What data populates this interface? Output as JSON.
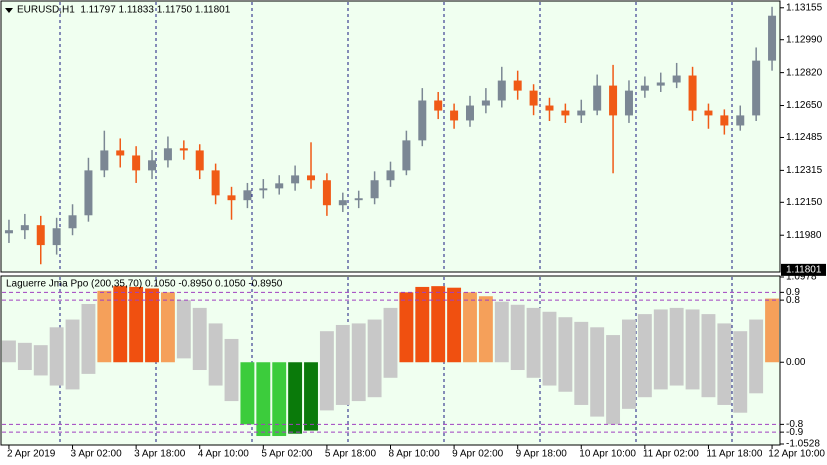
{
  "chart_data": [
    {
      "type": "candlestick",
      "title": "EURUSD,H1  1.11797 1.11833 1.11750 1.11801",
      "categories": [
        "2 Apr 2019",
        null,
        null,
        null,
        "3 Apr 02:00",
        null,
        null,
        null,
        "3 Apr 18:00",
        null,
        null,
        null,
        "4 Apr 10:00",
        null,
        null,
        null,
        "5 Apr 02:00",
        null,
        null,
        null,
        "5 Apr 18:00",
        null,
        null,
        null,
        "8 Apr 10:00",
        null,
        null,
        null,
        "9 Apr 02:00",
        null,
        null,
        null,
        "9 Apr 18:00",
        null,
        null,
        null,
        "10 Apr 10:00",
        null,
        null,
        null,
        "11 Apr 02:00",
        null,
        null,
        null,
        "11 Apr 18:00",
        null,
        null,
        null,
        "12 Apr 10:00"
      ],
      "open": [
        1.1199,
        1.12006,
        1.12032,
        1.11929,
        1.12016,
        1.12083,
        1.12315,
        1.12418,
        1.12392,
        1.12315,
        1.12367,
        1.12429,
        1.12418,
        1.12315,
        1.12186,
        1.12161,
        1.12212,
        1.12222,
        1.12248,
        1.12289,
        1.12264,
        1.12135,
        1.12161,
        1.12171,
        1.12264,
        1.12315,
        1.1247,
        1.12676,
        1.12624,
        1.12573,
        1.1265,
        1.12676,
        1.12779,
        1.12727,
        1.1265,
        1.12624,
        1.12599,
        1.12624,
        1.12753,
        1.12599,
        1.12727,
        1.12753,
        1.12769,
        1.12805,
        1.12624,
        1.12599,
        1.12547,
        1.12599,
        1.12882
      ],
      "high": [
        1.1206,
        1.1209,
        1.1208,
        1.1207,
        1.1214,
        1.1238,
        1.1252,
        1.1248,
        1.1244,
        1.1242,
        1.1249,
        1.1247,
        1.1245,
        1.1235,
        1.1223,
        1.1225,
        1.1227,
        1.1229,
        1.1234,
        1.1246,
        1.123,
        1.122,
        1.1221,
        1.1231,
        1.1236,
        1.1252,
        1.1274,
        1.1272,
        1.1266,
        1.127,
        1.1274,
        1.1285,
        1.1283,
        1.1276,
        1.1269,
        1.1266,
        1.1268,
        1.1281,
        1.1286,
        1.1278,
        1.128,
        1.1282,
        1.1287,
        1.1285,
        1.1266,
        1.1263,
        1.1265,
        1.1295,
        1.1316
      ],
      "low": [
        1.1194,
        1.1196,
        1.1183,
        1.1188,
        1.1198,
        1.1205,
        1.1228,
        1.1233,
        1.1225,
        1.1227,
        1.1233,
        1.1237,
        1.1227,
        1.1214,
        1.1206,
        1.1212,
        1.1217,
        1.1219,
        1.1221,
        1.1222,
        1.1208,
        1.121,
        1.1212,
        1.1214,
        1.1223,
        1.1229,
        1.1244,
        1.1258,
        1.1253,
        1.1254,
        1.1261,
        1.1264,
        1.1268,
        1.126,
        1.1257,
        1.1256,
        1.1256,
        1.126,
        1.123,
        1.1256,
        1.1269,
        1.1272,
        1.1274,
        1.1257,
        1.1253,
        1.125,
        1.1252,
        1.1257,
        1.1283
      ],
      "close": [
        1.12006,
        1.12032,
        1.11929,
        1.12016,
        1.12083,
        1.12315,
        1.12418,
        1.12392,
        1.12315,
        1.12367,
        1.12429,
        1.12418,
        1.12315,
        1.12186,
        1.12161,
        1.12212,
        1.12222,
        1.12248,
        1.12289,
        1.12264,
        1.12135,
        1.12161,
        1.12171,
        1.12264,
        1.12315,
        1.1247,
        1.12676,
        1.12624,
        1.12573,
        1.1265,
        1.12676,
        1.12779,
        1.12727,
        1.1265,
        1.12624,
        1.12599,
        1.12624,
        1.12753,
        1.12599,
        1.12727,
        1.12753,
        1.12769,
        1.12805,
        1.12624,
        1.12599,
        1.12547,
        1.12599,
        1.12882,
        1.13114
      ],
      "up_color": "#7b8794",
      "down_color": "#f05a16",
      "last_price": {
        "value": 1.11801,
        "label": "1.11801"
      },
      "ylim": [
        1.1179,
        1.1319
      ],
      "yticks": [
        1.13155,
        {
          "value": 1.1299,
          "label": "1.12990"
        },
        {
          "value": 1.1282,
          "label": "1.12820"
        },
        {
          "value": 1.1265,
          "label": "1.12650"
        },
        1.12485,
        1.12315,
        {
          "value": 1.1215,
          "label": "1.12150"
        },
        {
          "value": 1.1198,
          "label": "1.11980"
        }
      ]
    },
    {
      "type": "band-histogram",
      "title": "Laguerre Jma Ppo (200,35,70) 0.1050 -0.8950 0.1050 -0.8950",
      "upper": [
        0.28,
        0.25,
        0.22,
        0.45,
        0.55,
        0.75,
        0.92,
        0.98,
        0.97,
        0.95,
        0.9,
        0.8,
        0.7,
        0.5,
        0.3,
        0,
        0,
        0,
        0,
        0,
        0.4,
        0.48,
        0.5,
        0.55,
        0.7,
        0.9,
        0.97,
        0.98,
        0.96,
        0.9,
        0.85,
        0.78,
        0.74,
        0.7,
        0.65,
        0.58,
        0.52,
        0.45,
        0.35,
        0.55,
        0.62,
        0.68,
        0.7,
        0.68,
        0.62,
        0.5,
        0.4,
        0.55,
        0.82
      ],
      "lower": [
        0,
        -0.1,
        -0.17,
        -0.3,
        -0.35,
        -0.15,
        0,
        0,
        0,
        0,
        0,
        0.05,
        -0.1,
        -0.3,
        -0.5,
        -0.8,
        -0.95,
        -0.95,
        -0.92,
        -0.88,
        -0.62,
        -0.55,
        -0.5,
        -0.45,
        -0.2,
        0,
        0,
        0,
        0,
        0,
        0,
        0,
        -0.1,
        -0.2,
        -0.3,
        -0.38,
        -0.55,
        -0.7,
        -0.8,
        -0.6,
        -0.45,
        -0.35,
        -0.3,
        -0.35,
        -0.45,
        -0.55,
        -0.65,
        -0.4,
        0
      ],
      "colors": [
        "#c8c8c8",
        "#c8c8c8",
        "#c8c8c8",
        "#c8c8c8",
        "#c8c8c8",
        "#c8c8c8",
        "#f5a05a",
        "#f05010",
        "#f05010",
        "#f05010",
        "#f5a05a",
        "#c8c8c8",
        "#c8c8c8",
        "#c8c8c8",
        "#c8c8c8",
        "#3ccc3c",
        "#3ccc3c",
        "#3ccc3c",
        "#0a7a0a",
        "#0a7a0a",
        "#c8c8c8",
        "#c8c8c8",
        "#c8c8c8",
        "#c8c8c8",
        "#c8c8c8",
        "#f05010",
        "#f05010",
        "#f05010",
        "#f05010",
        "#f5a05a",
        "#f5a05a",
        "#c8c8c8",
        "#c8c8c8",
        "#c8c8c8",
        "#c8c8c8",
        "#c8c8c8",
        "#c8c8c8",
        "#c8c8c8",
        "#c8c8c8",
        "#c8c8c8",
        "#c8c8c8",
        "#c8c8c8",
        "#c8c8c8",
        "#c8c8c8",
        "#c8c8c8",
        "#c8c8c8",
        "#c8c8c8",
        "#c8c8c8",
        "#f5a05a"
      ],
      "levels": [
        0.9,
        0.8,
        -0.8,
        -0.9
      ],
      "level_color": "#a040c0",
      "ylim": [
        -1.0528,
        1.0978
      ],
      "yticks": [
        1.0978,
        0.9,
        0.8,
        {
          "value": 0,
          "label": "0.00"
        },
        -0.8,
        -0.9,
        -1.0528
      ]
    }
  ]
}
